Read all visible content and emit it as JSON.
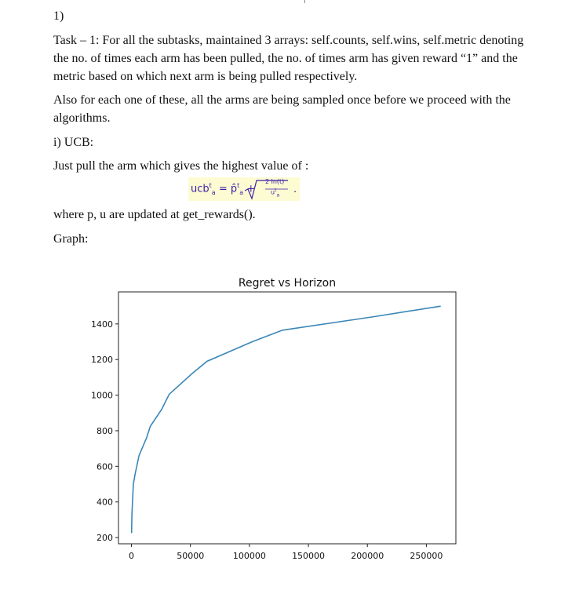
{
  "question_number": "1)",
  "task_text": "Task – 1: For all the subtasks, maintained 3 arrays: self.counts, self.wins, self.metric denoting the no. of times each arm has been pulled, the no. of times arm has given reward “1” and the metric based on which next arm is being pulled respectively.",
  "sampling_text": "Also for each one of these, all the arms are being sampled once before we proceed with the algorithms.",
  "section_heading": "i) UCB:",
  "instruction_text": "Just pull the arm which gives the highest value of :",
  "formula": {
    "lhs": "ucb",
    "lhs_superscript": "t",
    "lhs_subscript": "a",
    "equals": "=",
    "term": "p̂",
    "term_superscript": "t",
    "term_subscript": "a",
    "plus": "+",
    "numerator": "2 ln(t)",
    "denominator": "u",
    "denominator_superscript": "t",
    "denominator_subscript": "a",
    "trailing": ".",
    "highlight_color": "#fdfbd2",
    "text_color": "#3a1fa8"
  },
  "update_text": "where p, u are updated at get_rewards().",
  "graph_label": "Graph:",
  "chart_data": {
    "type": "line",
    "title": "Regret vs Horizon",
    "xlabel": "",
    "ylabel": "",
    "x": [
      100,
      400,
      1600,
      3200,
      6400,
      12800,
      16000,
      25600,
      32000,
      51200,
      64000,
      102400,
      128000,
      204800,
      262144
    ],
    "series": [
      {
        "values": [
          225,
          330,
          500,
          560,
          660,
          760,
          825,
          920,
          1005,
          1120,
          1190,
          1300,
          1365,
          1440,
          1500
        ],
        "color": "#3a87b8"
      }
    ],
    "xlim": [
      -11000,
      275000
    ],
    "ylim": [
      165,
      1580
    ],
    "xticks": [
      0,
      50000,
      100000,
      150000,
      200000,
      250000
    ],
    "xtick_labels": [
      "0",
      "50000",
      "100000",
      "150000",
      "200000",
      "250000"
    ],
    "yticks": [
      200,
      400,
      600,
      800,
      1000,
      1200,
      1400
    ],
    "ytick_labels": [
      "200",
      "400",
      "600",
      "800",
      "1000",
      "1200",
      "1400"
    ],
    "grid": false,
    "legend": "none"
  }
}
